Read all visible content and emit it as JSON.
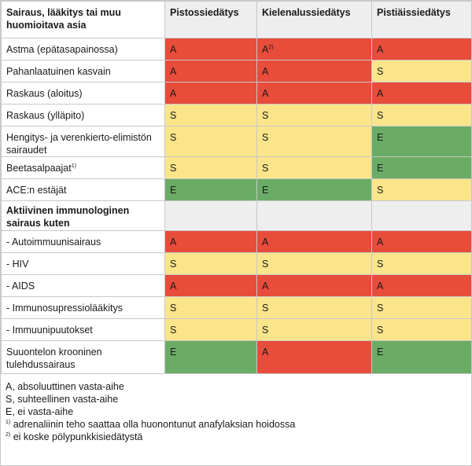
{
  "header": {
    "col0": "Sairaus, lääkitys tai muu huomioitava asia",
    "col1": "Pistossiedätys",
    "col2": "Kielenalussiedätys",
    "col3": "Pistiäissiedätys"
  },
  "colors": {
    "A": "#e84c3b",
    "S": "#fbe58b",
    "E": "#6aac65",
    "header_bg": "#eeeeee"
  },
  "rows": [
    {
      "label": "Astma (epätasapainossa)",
      "values": [
        "A",
        "A",
        "A"
      ],
      "sup2": "2)"
    },
    {
      "label": "Pahanlaatuinen kasvain",
      "values": [
        "A",
        "A",
        "S"
      ]
    },
    {
      "label": "Raskaus (aloitus)",
      "values": [
        "A",
        "A",
        "A"
      ]
    },
    {
      "label": "Raskaus (ylläpito)",
      "values": [
        "S",
        "S",
        "S"
      ]
    },
    {
      "label": "Hengitys- ja verenkierto-elimistön sairaudet",
      "values": [
        "S",
        "S",
        "E"
      ]
    },
    {
      "label": "Beetasalpaajat",
      "label_sup": "1)",
      "values": [
        "S",
        "S",
        "E"
      ]
    },
    {
      "label": "ACE:n estäjät",
      "values": [
        "E",
        "E",
        "S"
      ]
    },
    {
      "section": "Aktiivinen immunologinen sairaus kuten"
    },
    {
      "label": "- Autoimmuunisairaus",
      "values": [
        "A",
        "A",
        "A"
      ]
    },
    {
      "label": "- HIV",
      "values": [
        "S",
        "S",
        "S"
      ]
    },
    {
      "label": "- AIDS",
      "values": [
        "A",
        "A",
        "A"
      ]
    },
    {
      "label": "- Immunosupressiolääkitys",
      "values": [
        "S",
        "S",
        "S"
      ]
    },
    {
      "label": "- Immuunipuutokset",
      "values": [
        "S",
        "S",
        "S"
      ]
    },
    {
      "label": "Suuontelon krooninen tulehdussairaus",
      "values": [
        "E",
        "A",
        "E"
      ]
    }
  ],
  "notes": {
    "a": "A, absoluuttinen vasta-aihe",
    "s": "S, suhteellinen vasta-aihe",
    "e": "E, ei vasta-aihe",
    "fn1_mark": "1)",
    "fn1": " adrenaliinin teho saattaa olla huonontunut anafylaksian hoidossa",
    "fn2_mark": "2)",
    "fn2": " ei koske pölypunkkisiedätystä"
  }
}
